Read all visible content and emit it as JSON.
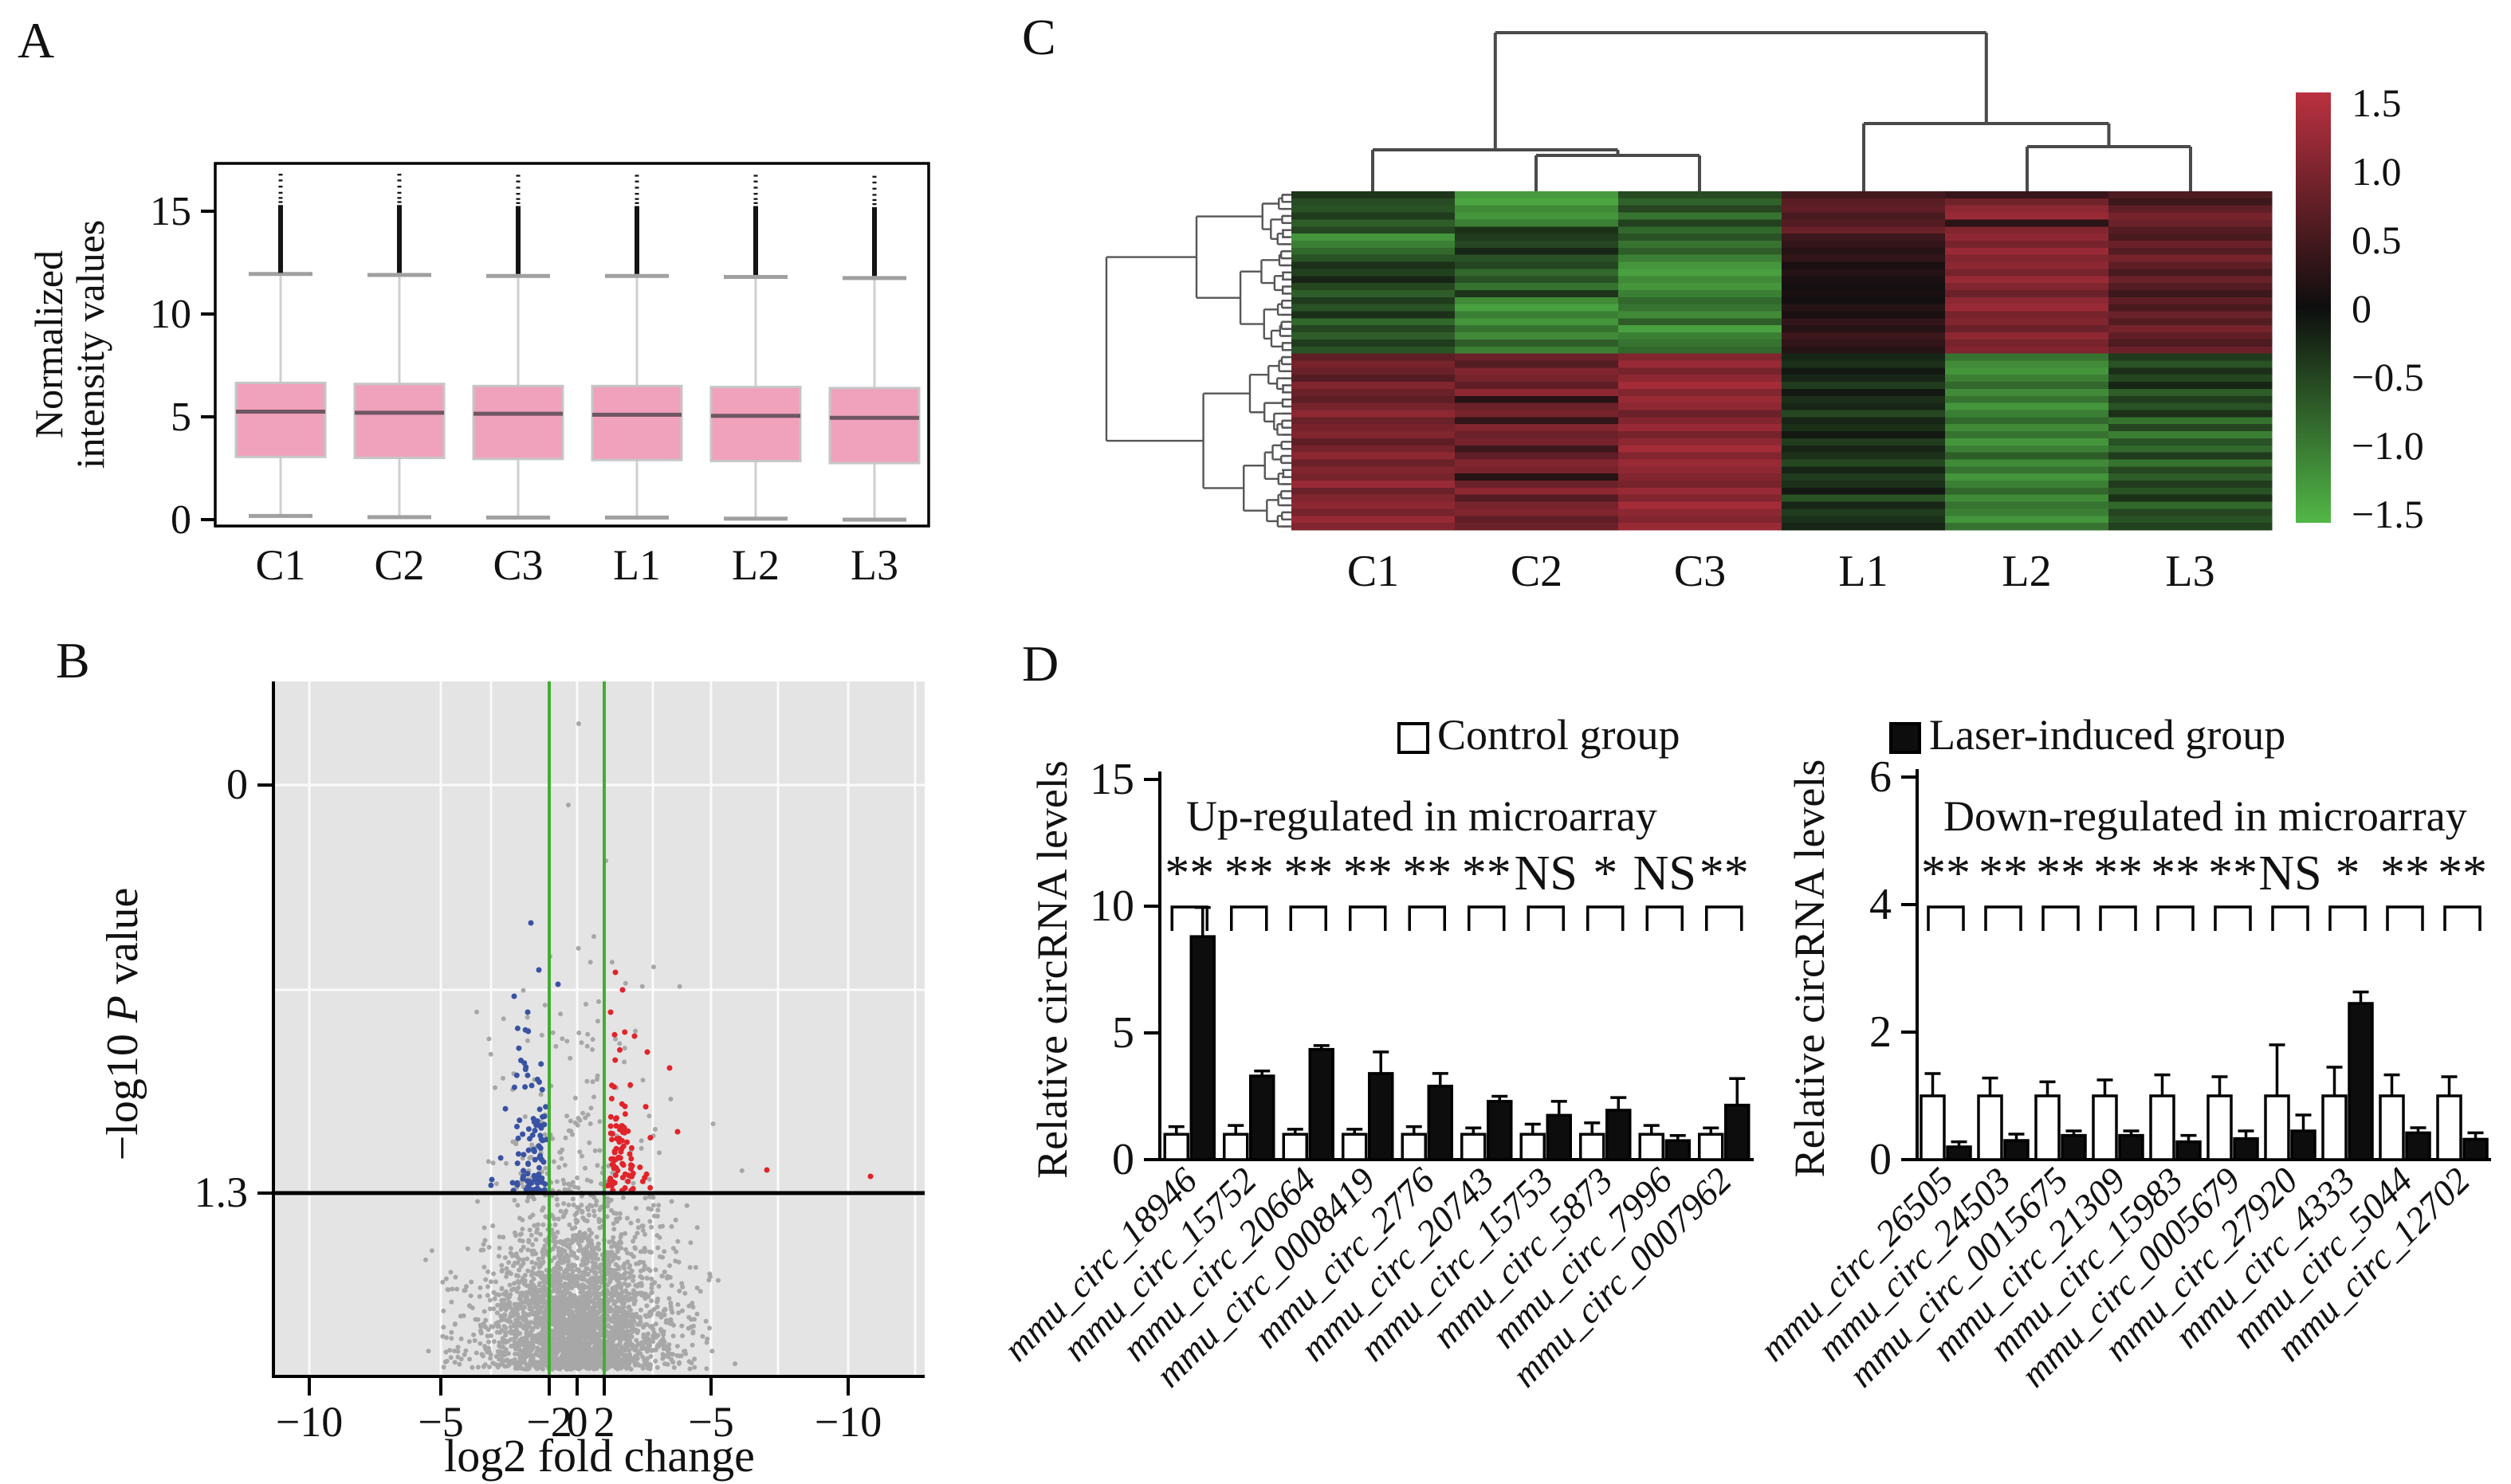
{
  "panel_labels": {
    "a": "A",
    "b": "B",
    "c": "C",
    "d": "D"
  },
  "legend": {
    "items": [
      {
        "label": "Control group",
        "fill": "#ffffff"
      },
      {
        "label": "Laser-induced group",
        "fill": "#0d0d0d"
      }
    ]
  },
  "chart_data": [
    {
      "type": "box",
      "panel": "A",
      "title": "",
      "xlabel": "",
      "ylabel": "Normalized intensity values",
      "ylabel_lines": [
        "Normalized",
        "intensity values"
      ],
      "yticks": [
        0,
        5,
        10,
        15
      ],
      "ylim": [
        -0.6,
        17.2
      ],
      "grid": false,
      "categories": [
        "C1",
        "C2",
        "C3",
        "L1",
        "L2",
        "L3"
      ],
      "boxes": [
        {
          "q1": 3.05,
          "median": 5.25,
          "q3": 6.65,
          "whisker_low": 0.18,
          "whisker_high": 11.95,
          "outlier_low": 12.0,
          "outlier_high": 16.85
        },
        {
          "q1": 3.0,
          "median": 5.2,
          "q3": 6.6,
          "whisker_low": 0.12,
          "whisker_high": 11.9,
          "outlier_low": 12.0,
          "outlier_high": 16.85
        },
        {
          "q1": 2.95,
          "median": 5.15,
          "q3": 6.5,
          "whisker_low": 0.1,
          "whisker_high": 11.85,
          "outlier_low": 11.95,
          "outlier_high": 16.8
        },
        {
          "q1": 2.9,
          "median": 5.1,
          "q3": 6.5,
          "whisker_low": 0.1,
          "whisker_high": 11.85,
          "outlier_low": 11.95,
          "outlier_high": 16.8
        },
        {
          "q1": 2.85,
          "median": 5.05,
          "q3": 6.45,
          "whisker_low": 0.05,
          "whisker_high": 11.8,
          "outlier_low": 11.9,
          "outlier_high": 16.8
        },
        {
          "q1": 2.75,
          "median": 4.95,
          "q3": 6.4,
          "whisker_low": 0.0,
          "whisker_high": 11.75,
          "outlier_low": 11.85,
          "outlier_high": 16.75
        }
      ],
      "colors": {
        "box_fill": "#f0a1bb",
        "box_stroke": "#c6c6c6",
        "median": "#6f5663",
        "whisker": "#cfcfcf",
        "cap": "#a0a0a0",
        "outliers": "#141414",
        "frame": "#000000"
      }
    },
    {
      "type": "scatter",
      "panel": "B",
      "title": "",
      "xlabel": "log2 fold change",
      "ylabel": "−log10 P value",
      "ylabel_parts": [
        {
          "t": "−log10 ",
          "i": false
        },
        {
          "t": "P",
          "i": true
        },
        {
          "t": " value",
          "i": false
        }
      ],
      "x_tick_labels": [
        "−10",
        "−5",
        "−2",
        "0",
        "2",
        "−5",
        "−10"
      ],
      "y_tick_labels": [
        "0",
        "1.3"
      ],
      "threshold_p_line": "1.3",
      "fold_change_cutoffs": [
        "−2",
        "2"
      ],
      "grid": true,
      "legend_position": "none",
      "points_summary": {
        "nonsignificant": 3200,
        "down_regulated_blue": 101,
        "up_regulated_red": 95
      },
      "colors": {
        "background": "#e4e4e4",
        "gridline": "#fafafa",
        "nonsig": "#a7a7a7",
        "down": "#3952a3",
        "up": "#e1232a",
        "cutoff_lines": "#44ac34",
        "threshold_line": "#000000"
      }
    },
    {
      "type": "heatmap",
      "panel": "C",
      "columns": [
        "C1",
        "C2",
        "C3",
        "L1",
        "L2",
        "L3"
      ],
      "colorbar_ticks": [
        "1.5",
        "1.0",
        "0.5",
        "0",
        "−0.5",
        "−1.0",
        "−1.5"
      ],
      "scale": {
        "max": 1.5,
        "mid": 0,
        "min": -1.5,
        "max_color": "#bb3140",
        "mid_color": "#0e0e0e",
        "min_color": "#52b747"
      },
      "dendrogram_color": "#4a4a4a",
      "rows": [
        [
          -0.35,
          -1.25,
          -0.55,
          0.45,
          0.35,
          0.55
        ],
        [
          -0.55,
          -1.35,
          -0.75,
          0.65,
          0.85,
          0.4
        ],
        [
          -0.6,
          -1.1,
          -0.5,
          0.7,
          1.1,
          0.7
        ],
        [
          -0.4,
          -1.2,
          -0.9,
          0.5,
          1.2,
          0.9
        ],
        [
          -0.7,
          -1.0,
          -0.45,
          0.6,
          0.25,
          0.8
        ],
        [
          -0.5,
          -0.3,
          -0.8,
          0.8,
          1.0,
          0.6
        ],
        [
          -1.2,
          -0.4,
          -0.6,
          0.4,
          1.1,
          0.5
        ],
        [
          -1.0,
          -0.5,
          -0.9,
          0.3,
          0.9,
          0.8
        ],
        [
          -0.8,
          -0.2,
          -0.7,
          0.2,
          1.2,
          0.6
        ],
        [
          -0.6,
          -0.6,
          -1.0,
          0.3,
          1.0,
          0.9
        ],
        [
          -0.3,
          -0.5,
          -1.2,
          0.1,
          1.1,
          0.7
        ],
        [
          -0.45,
          -0.8,
          -1.3,
          0.2,
          0.9,
          0.5
        ],
        [
          -0.2,
          -0.6,
          -1.1,
          0.1,
          1.2,
          0.8
        ],
        [
          -0.5,
          -0.9,
          -1.2,
          0.05,
          1.0,
          0.6
        ],
        [
          -0.7,
          -0.35,
          -1.0,
          0.1,
          0.8,
          0.4
        ],
        [
          -0.4,
          -1.1,
          -0.8,
          0.05,
          1.1,
          0.7
        ],
        [
          -0.6,
          -1.3,
          -0.9,
          0.2,
          1.2,
          0.5
        ],
        [
          -0.3,
          -1.0,
          -1.1,
          0.1,
          0.9,
          0.8
        ],
        [
          -0.8,
          -1.2,
          -0.7,
          0.3,
          1.0,
          0.6
        ],
        [
          -0.5,
          -0.9,
          -1.3,
          0.2,
          0.8,
          0.9
        ],
        [
          -0.7,
          -1.1,
          -1.0,
          0.4,
          1.1,
          0.7
        ],
        [
          -0.4,
          -0.7,
          -0.9,
          0.3,
          0.9,
          0.55
        ],
        [
          -0.6,
          -1.0,
          -0.8,
          0.2,
          1.0,
          0.8
        ],
        [
          0.7,
          0.8,
          1.0,
          -0.2,
          -0.9,
          -0.4
        ],
        [
          0.9,
          0.6,
          1.2,
          -0.3,
          -1.1,
          -0.6
        ],
        [
          0.8,
          1.0,
          0.9,
          -0.1,
          -1.2,
          -0.3
        ],
        [
          0.6,
          0.9,
          1.1,
          -0.2,
          -1.0,
          -0.5
        ],
        [
          1.0,
          0.7,
          1.3,
          -0.4,
          -0.8,
          -0.2
        ],
        [
          0.8,
          1.1,
          1.0,
          -0.1,
          -1.1,
          -0.7
        ],
        [
          0.7,
          0.2,
          1.2,
          -0.3,
          -0.9,
          -0.4
        ],
        [
          0.9,
          0.8,
          1.1,
          -0.2,
          -1.2,
          -0.6
        ],
        [
          1.1,
          0.9,
          0.8,
          -0.5,
          -1.0,
          -0.3
        ],
        [
          0.8,
          0.3,
          1.0,
          -0.2,
          -0.8,
          -0.9
        ],
        [
          0.9,
          1.0,
          1.2,
          -0.3,
          -1.1,
          -0.5
        ],
        [
          1.0,
          0.8,
          0.9,
          -0.1,
          -0.9,
          -1.0
        ],
        [
          0.7,
          0.9,
          1.1,
          -0.4,
          -1.2,
          -0.6
        ],
        [
          0.9,
          0.4,
          1.3,
          -0.2,
          -1.0,
          -0.8
        ],
        [
          1.1,
          0.7,
          1.0,
          -0.3,
          -0.7,
          -0.4
        ],
        [
          0.8,
          1.0,
          1.2,
          -0.5,
          -1.1,
          -0.9
        ],
        [
          1.0,
          0.9,
          1.1,
          -0.2,
          -0.9,
          -0.5
        ],
        [
          0.9,
          0.2,
          1.0,
          -0.4,
          -1.2,
          -0.7
        ],
        [
          1.2,
          0.8,
          0.9,
          -0.3,
          -1.0,
          -0.4
        ],
        [
          0.8,
          1.1,
          1.2,
          -0.1,
          -0.8,
          -0.6
        ],
        [
          1.0,
          0.6,
          1.0,
          -0.6,
          -1.1,
          -0.3
        ],
        [
          1.1,
          0.9,
          1.3,
          -0.2,
          -0.9,
          -0.8
        ],
        [
          0.9,
          1.0,
          1.1,
          -0.4,
          -1.0,
          -0.5
        ],
        [
          1.2,
          0.7,
          1.0,
          -0.3,
          -1.2,
          -0.6
        ],
        [
          1.0,
          0.8,
          1.2,
          -0.2,
          -0.9,
          -0.45
        ]
      ]
    },
    {
      "type": "bar",
      "panel": "D-left",
      "title": "Up-regulated in microarray",
      "xlabel": "",
      "ylabel": "Relative circRNA levels",
      "yticks": [
        0,
        5,
        10,
        15
      ],
      "ylim": [
        0,
        15
      ],
      "categories": [
        "mmu_circ_18946",
        "mmu_circ_15752",
        "mmu_circ_20664",
        "mmu_circ_0008419",
        "mmu_circ_2776",
        "mmu_circ_20743",
        "mmu_circ_15753",
        "mmu_circ_5873",
        "mmu_circ_7996",
        "mmu_circ_0007962"
      ],
      "series": [
        {
          "name": "Control group",
          "values": [
            1.0,
            1.0,
            1.0,
            1.0,
            1.0,
            1.0,
            1.0,
            1.0,
            1.0,
            1.0
          ],
          "errors": [
            0.3,
            0.35,
            0.2,
            0.2,
            0.3,
            0.25,
            0.4,
            0.45,
            0.35,
            0.25
          ]
        },
        {
          "name": "Laser-induced group",
          "values": [
            8.8,
            3.3,
            4.35,
            3.4,
            2.9,
            2.3,
            1.75,
            1.95,
            0.75,
            2.15
          ],
          "errors": [
            1.15,
            0.2,
            0.15,
            0.85,
            0.5,
            0.2,
            0.55,
            0.5,
            0.2,
            1.05
          ]
        }
      ],
      "significance": [
        "**",
        "**",
        "**",
        "**",
        "**",
        "**",
        "NS",
        "*",
        "NS",
        "**"
      ]
    },
    {
      "type": "bar",
      "panel": "D-right",
      "title": "Down-regulated in microarray",
      "xlabel": "",
      "ylabel": "Relative circRNA levels",
      "yticks": [
        0,
        2,
        4,
        6
      ],
      "ylim": [
        0,
        6
      ],
      "categories": [
        "mmu_circ_26505",
        "mmu_circ_24503",
        "mmu_circ_0015675",
        "mmu_circ_21309",
        "mmu_circ_15983",
        "mmu_circ_0005679",
        "mmu_circ_27920",
        "mmu_circ_4333",
        "mmu_circ_5044",
        "mmu_circ_12702"
      ],
      "series": [
        {
          "name": "Control group",
          "values": [
            1.0,
            1.0,
            1.0,
            1.0,
            1.0,
            1.0,
            1.0,
            1.0,
            1.0,
            1.0
          ],
          "errors": [
            0.35,
            0.28,
            0.22,
            0.25,
            0.33,
            0.3,
            0.8,
            0.45,
            0.33,
            0.3
          ]
        },
        {
          "name": "Laser-induced group",
          "values": [
            0.2,
            0.3,
            0.38,
            0.38,
            0.28,
            0.33,
            0.45,
            2.45,
            0.42,
            0.32
          ],
          "errors": [
            0.08,
            0.1,
            0.07,
            0.07,
            0.1,
            0.12,
            0.25,
            0.18,
            0.08,
            0.1
          ]
        }
      ],
      "significance": [
        "**",
        "**",
        "**",
        "**",
        "**",
        "**",
        "NS",
        "*",
        "**",
        "**"
      ]
    }
  ]
}
